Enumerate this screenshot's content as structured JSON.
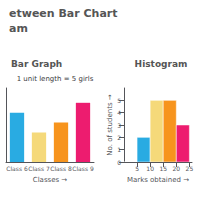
{
  "title": "etween Bar Chart",
  "subtitle": "am",
  "chart_data": [
    {
      "type": "bar",
      "title": "Bar Graph",
      "categories": [
        "Class 6",
        "Class 7",
        "Class 8",
        "Class 9"
      ],
      "values": [
        5,
        3,
        4,
        6
      ],
      "colors": [
        "#29abe2",
        "#f5d97a",
        "#f7941d",
        "#ed1c6f"
      ],
      "xlabel": "Classes →",
      "ylim": [
        0,
        7.5
      ],
      "tick_labels": "x",
      "grid": false,
      "annotations": [
        "1 unit length = 5 girls"
      ]
    },
    {
      "type": "histogram",
      "title": "Histogram",
      "bins": [
        0,
        5,
        10,
        15,
        20,
        25
      ],
      "values": [
        0,
        2,
        5,
        5,
        3
      ],
      "colors": [
        "#c8e8f5",
        "#29abe2",
        "#f5d97a",
        "#f7941d",
        "#ed1c6f"
      ],
      "xlabel": "Marks obtained →",
      "ylabel": "No. of students →",
      "xlim": [
        0,
        26
      ],
      "xticks": [
        5,
        10,
        15,
        20,
        25
      ],
      "ylim": [
        0,
        6
      ],
      "yticks": [
        0,
        1,
        2,
        3,
        4,
        5
      ],
      "grid": false
    }
  ]
}
